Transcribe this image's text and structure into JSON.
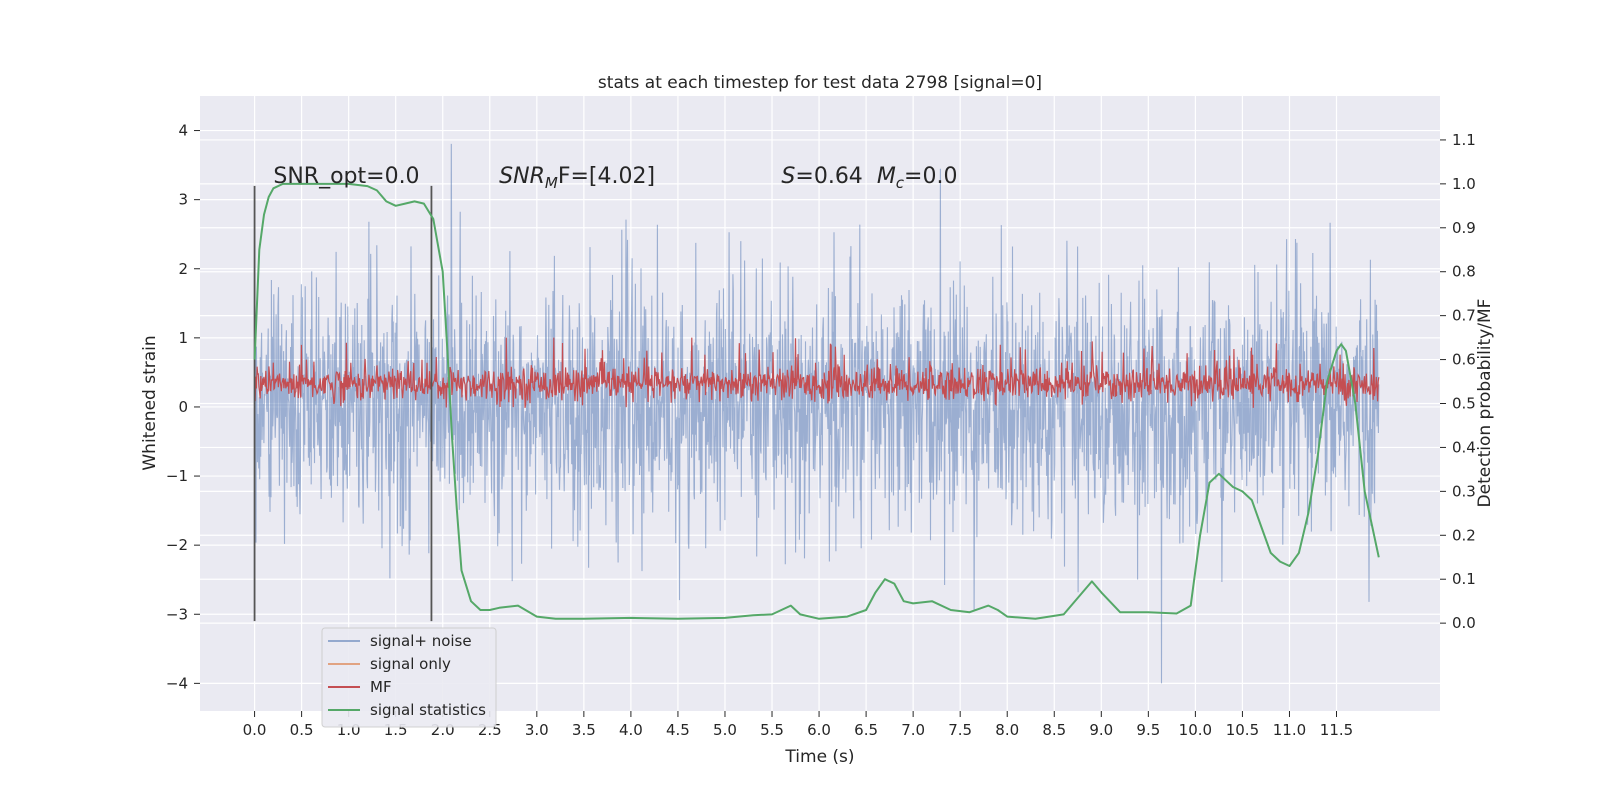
{
  "chart_data": {
    "type": "line",
    "title": "stats at each timestep for test data 2798 [signal=0]",
    "xlabel": "Time (s)",
    "ylabel_left": "Whitened strain",
    "ylabel_right": "Detection probability/MF",
    "xlim": [
      -0.58,
      12.6
    ],
    "ylim_left": [
      -4.4,
      4.5
    ],
    "ylim_right": [
      -0.2,
      1.2
    ],
    "x_ticks": [
      0.0,
      0.5,
      1.0,
      1.5,
      2.0,
      2.5,
      3.0,
      3.5,
      4.0,
      4.5,
      5.0,
      5.5,
      6.0,
      6.5,
      7.0,
      7.5,
      8.0,
      8.5,
      9.0,
      9.5,
      10.0,
      10.5,
      11.0,
      11.5
    ],
    "x_tick_labels": [
      "0.0",
      "0.5",
      "1.0",
      "1.5",
      "2.0",
      "2.5",
      "3.0",
      "3.5",
      "4.0",
      "4.5",
      "5.0",
      "5.5",
      "6.0",
      "6.5",
      "7.0",
      "7.5",
      "8.0",
      "8.5",
      "9.0",
      "9.5",
      "10.0",
      "10.5",
      "11.0",
      "11.5"
    ],
    "y_ticks_left": [
      -4,
      -3,
      -2,
      -1,
      0,
      1,
      2,
      3,
      4
    ],
    "y_tick_labels_left": [
      "−4",
      "−3",
      "−2",
      "−1",
      "0",
      "1",
      "2",
      "3",
      "4"
    ],
    "y_ticks_right": [
      0.0,
      0.1,
      0.2,
      0.3,
      0.4,
      0.5,
      0.6,
      0.7,
      0.8,
      0.9,
      1.0,
      1.1
    ],
    "y_tick_labels_right": [
      "0.0",
      "0.1",
      "0.2",
      "0.3",
      "0.4",
      "0.5",
      "0.6",
      "0.7",
      "0.8",
      "0.9",
      "1.0",
      "1.1"
    ],
    "grid": true,
    "legend_placement": "lower-left",
    "colors": {
      "background": "#eaeaf2",
      "grid": "#ffffff",
      "signal_noise": "#4c72b0",
      "signal_only": "#dd8452",
      "mf": "#c44e52",
      "signal_statistics": "#55a868",
      "markers": "#555555"
    },
    "series": [
      {
        "name": "signal+ noise",
        "axis": "left",
        "description_of_envelope": "dense whitened noise between about -2.5 and 2.6, with spikes up to 4.1 and down to -4.0",
        "x_range": [
          0.0,
          11.95
        ],
        "approx_min": -4.0,
        "approx_max": 4.1
      },
      {
        "name": "signal only",
        "axis": "left",
        "x": [],
        "y": []
      },
      {
        "name": "MF",
        "axis": "right",
        "x_range": [
          0.0,
          11.95
        ],
        "approx_min": 0.49,
        "approx_max": 0.65
      },
      {
        "name": "signal statistics",
        "axis": "right",
        "x": [
          0.0,
          0.05,
          0.1,
          0.15,
          0.2,
          0.3,
          0.5,
          0.8,
          1.0,
          1.2,
          1.3,
          1.4,
          1.5,
          1.6,
          1.7,
          1.8,
          1.9,
          2.0,
          2.05,
          2.1,
          2.15,
          2.2,
          2.3,
          2.4,
          2.5,
          2.6,
          2.8,
          3.0,
          3.2,
          3.5,
          4.0,
          4.5,
          5.0,
          5.3,
          5.5,
          5.6,
          5.7,
          5.8,
          6.0,
          6.3,
          6.5,
          6.6,
          6.7,
          6.8,
          6.9,
          7.0,
          7.2,
          7.4,
          7.6,
          7.8,
          7.9,
          8.0,
          8.3,
          8.6,
          8.8,
          8.9,
          9.0,
          9.2,
          9.5,
          9.8,
          9.95,
          10.05,
          10.15,
          10.25,
          10.3,
          10.4,
          10.5,
          10.6,
          10.7,
          10.8,
          10.9,
          11.0,
          11.1,
          11.2,
          11.3,
          11.4,
          11.5,
          11.55,
          11.6,
          11.7,
          11.8,
          11.95
        ],
        "y": [
          0.6,
          0.85,
          0.93,
          0.97,
          0.99,
          1.0,
          1.0,
          1.0,
          1.0,
          0.995,
          0.985,
          0.96,
          0.95,
          0.955,
          0.96,
          0.955,
          0.92,
          0.8,
          0.62,
          0.42,
          0.26,
          0.12,
          0.05,
          0.03,
          0.03,
          0.035,
          0.04,
          0.015,
          0.01,
          0.01,
          0.012,
          0.01,
          0.012,
          0.018,
          0.02,
          0.03,
          0.04,
          0.02,
          0.01,
          0.015,
          0.03,
          0.07,
          0.1,
          0.09,
          0.05,
          0.045,
          0.05,
          0.03,
          0.025,
          0.04,
          0.03,
          0.015,
          0.01,
          0.02,
          0.07,
          0.095,
          0.07,
          0.025,
          0.025,
          0.022,
          0.04,
          0.2,
          0.32,
          0.34,
          0.33,
          0.31,
          0.3,
          0.28,
          0.22,
          0.16,
          0.14,
          0.13,
          0.16,
          0.25,
          0.38,
          0.55,
          0.62,
          0.635,
          0.62,
          0.5,
          0.3,
          0.15
        ]
      }
    ],
    "vertical_markers": [
      {
        "x": 0.0,
        "ymin": -3.1,
        "ymax": 3.2
      },
      {
        "x": 1.88,
        "ymin": -3.1,
        "ymax": 3.2
      }
    ],
    "annotations": [
      {
        "id": "snr_opt",
        "text": "SNR_opt=0.0",
        "x": 0.2,
        "y": 3.3
      },
      {
        "id": "snr_mf",
        "text_base": "SNR",
        "text_sub": "M",
        "text_tail": "F=[4.02]",
        "x": 2.6,
        "y": 3.3
      },
      {
        "id": "stat",
        "text_s": "S",
        "text_s_value": "=0.64",
        "text_m": "M",
        "text_m_sub": "c",
        "text_m_value": "=0.0",
        "x": 5.6,
        "y": 3.3
      }
    ]
  }
}
